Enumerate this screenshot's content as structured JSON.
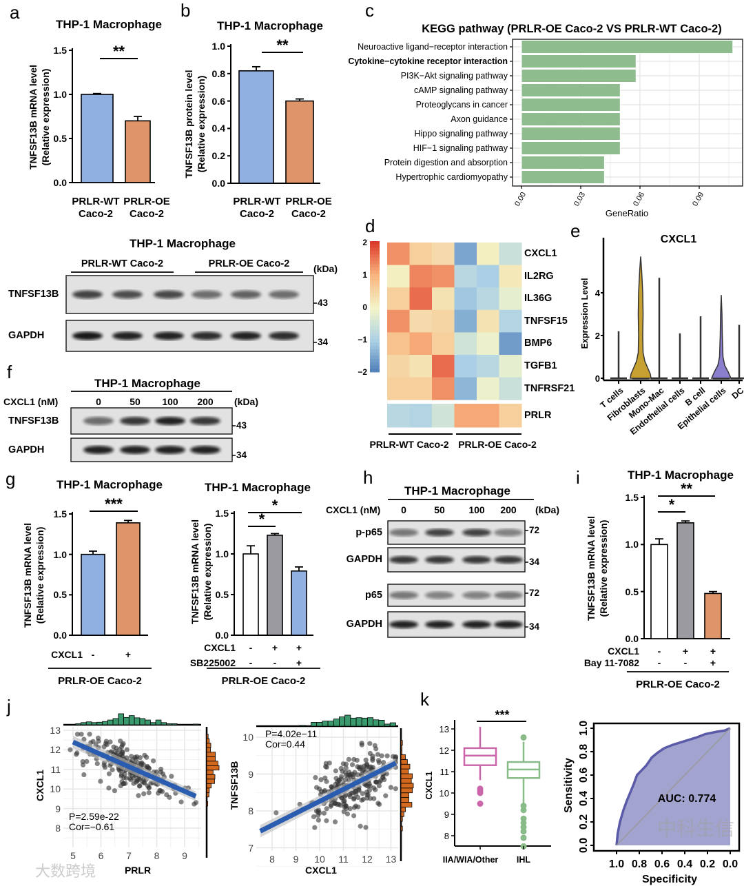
{
  "panel_labels": {
    "a": "a",
    "b": "b",
    "c": "c",
    "d": "d",
    "e": "e",
    "f": "f",
    "g": "g",
    "h": "h",
    "i": "i",
    "j": "j",
    "k": "k"
  },
  "watermarks": [
    "中科生信",
    "大数跨境"
  ],
  "colors": {
    "wt_blue": "#8fb0e0",
    "oe_orange": "#e0946a",
    "gray_bar": "#9a9aa0",
    "kegg_green": "#8fbc8f",
    "fibroblast_gold": "#c6a030",
    "epithelial_purple": "#8a7fcc",
    "scatter_line": "#2a5db0",
    "hist_green": "#3a9a6e",
    "hist_orange": "#d2691e",
    "box_pink": "#cc66aa",
    "box_green": "#88bb88",
    "roc_fill": "#a3a3d0",
    "roc_line": "#5a5aa8"
  },
  "chart_data": [
    {
      "id": "a",
      "type": "bar",
      "title": "THP-1 Macrophage",
      "ylabel": [
        "TNFSF13B mRNA level",
        "(Relative expression)"
      ],
      "ylim": [
        0,
        1.5
      ],
      "yticks": [
        "0.0",
        "0.5",
        "1.0",
        "1.5"
      ],
      "categories": [
        [
          "PRLR-WT",
          "Caco-2"
        ],
        [
          "PRLR-OE",
          "Caco-2"
        ]
      ],
      "values": [
        1.0,
        0.7
      ],
      "errors": [
        0.01,
        0.05
      ],
      "bar_colors": [
        "#8fb0e0",
        "#e0946a"
      ],
      "significance": [
        "**"
      ]
    },
    {
      "id": "b",
      "type": "bar",
      "title": "THP-1 Macrophage",
      "ylabel": [
        "TNFSF13B protein level",
        "(Relative expression)"
      ],
      "ylim": [
        0,
        1.0
      ],
      "yticks": [
        "0.0",
        "0.2",
        "0.4",
        "0.6",
        "0.8",
        "1.0"
      ],
      "categories": [
        [
          "PRLR-WT",
          "Caco-2"
        ],
        [
          "PRLR-OE",
          "Caco-2"
        ]
      ],
      "values": [
        0.82,
        0.6
      ],
      "errors": [
        0.03,
        0.015
      ],
      "bar_colors": [
        "#8fb0e0",
        "#e0946a"
      ],
      "significance": [
        "**"
      ]
    },
    {
      "id": "c",
      "type": "bar",
      "orientation": "horizontal",
      "title": "KEGG pathway (PRLR-OE Caco-2 VS PRLR-WT Caco-2)",
      "xlabel": "GeneRatio",
      "xticks": [
        "0.00",
        "0.03",
        "0.06",
        "0.09"
      ],
      "xlim": [
        0,
        0.11
      ],
      "categories": [
        "Neuroactive ligand−receptor interaction",
        "Cytokine−cytokine receptor interaction",
        "PI3K−Akt signaling pathway",
        "cAMP signaling pathway",
        "Proteoglycans in cancer",
        "Axon guidance",
        "Hippo signaling pathway",
        "HIF−1 signaling pathway",
        "Protein digestion and absorption",
        "Hypertrophic cardiomyopathy"
      ],
      "values": [
        0.107,
        0.058,
        0.058,
        0.05,
        0.05,
        0.05,
        0.05,
        0.05,
        0.042,
        0.042
      ],
      "highlight_index": 1,
      "grid": true
    },
    {
      "id": "d",
      "type": "heatmap",
      "rows": [
        "CXCL1",
        "IL2RG",
        "IL36G",
        "TNFSF15",
        "BMP6",
        "TGFB1",
        "TNFRSF21",
        "PRLR"
      ],
      "groups": [
        "PRLR-WT Caco-2",
        "PRLR-OE Caco-2"
      ],
      "values": [
        [
          1.3,
          0.6,
          0.4,
          -1.5,
          0.1,
          -0.6
        ],
        [
          0.1,
          1.4,
          1.3,
          -0.8,
          -1.0,
          0.2
        ],
        [
          0.6,
          1.6,
          0.3,
          -1.1,
          -0.8,
          -0.2
        ],
        [
          1.3,
          0.4,
          0.5,
          -1.4,
          0.3,
          -0.9
        ],
        [
          0.8,
          1.1,
          0.6,
          -0.5,
          -0.1,
          -1.6
        ],
        [
          0.5,
          0.3,
          1.6,
          -1.0,
          -0.8,
          -0.2
        ],
        [
          0.6,
          0.6,
          1.3,
          -1.3,
          -0.1,
          -0.6
        ],
        [
          -0.8,
          -0.9,
          -0.5,
          1.1,
          1.1,
          0.6
        ]
      ],
      "colorbar_ticks": [
        "2",
        "1",
        "0",
        "−1",
        "−2"
      ],
      "range": [
        -2,
        2
      ]
    },
    {
      "id": "e",
      "type": "violin",
      "title": "CXCL1",
      "ylabel": "Expression Level",
      "yticks": [
        "0",
        "2",
        "4"
      ],
      "categories": [
        "T cells",
        "Fibroblasts",
        "Mono-Mac",
        "Endothelial cells",
        "B cell",
        "Epithelial cells",
        "DC"
      ],
      "max_values": [
        2.2,
        5.7,
        4.7,
        2.1,
        2.9,
        3.9,
        2.5
      ]
    },
    {
      "id": "g_left",
      "type": "bar",
      "title": "THP-1 Macrophage",
      "ylabel": [
        "TNFSF13B mRNA level",
        "(Relative expression)"
      ],
      "ylim": [
        0,
        1.5
      ],
      "yticks": [
        "0.0",
        "0.5",
        "1.0",
        "1.5"
      ],
      "rows": [
        {
          "label": "CXCL1",
          "values": [
            "-",
            "+"
          ]
        }
      ],
      "group": "PRLR-OE Caco-2",
      "values": [
        1.0,
        1.39
      ],
      "errors": [
        0.04,
        0.03
      ],
      "bar_colors": [
        "#8fb0e0",
        "#e0946a"
      ],
      "significance": [
        "***"
      ]
    },
    {
      "id": "g_right",
      "type": "bar",
      "title": "THP-1 Macrophage",
      "ylabel": [
        "TNFSF13B mRNA level",
        "(Relative expression)"
      ],
      "ylim": [
        0,
        1.5
      ],
      "yticks": [
        "0.0",
        "0.5",
        "1.0",
        "1.5"
      ],
      "rows": [
        {
          "label": "CXCL1",
          "values": [
            "-",
            "+",
            "+"
          ]
        },
        {
          "label": "SB225002",
          "values": [
            "-",
            "-",
            "+"
          ]
        }
      ],
      "group": "PRLR-OE Caco-2",
      "values": [
        1.0,
        1.23,
        0.79
      ],
      "errors": [
        0.1,
        0.02,
        0.05
      ],
      "bar_colors": [
        "#ffffff",
        "#9a9aa0",
        "#8fb0e0"
      ],
      "significance": [
        "*",
        "*"
      ]
    },
    {
      "id": "i",
      "type": "bar",
      "title": "THP-1 Macrophage",
      "ylabel": [
        "TNFSF13B mRNA level",
        "(Relative expression)"
      ],
      "ylim": [
        0,
        1.5
      ],
      "yticks": [
        "0.0",
        "0.5",
        "1.0",
        "1.5"
      ],
      "rows": [
        {
          "label": "CXCL1",
          "values": [
            "-",
            "+",
            "+"
          ]
        },
        {
          "label": "Bay 11-7082",
          "values": [
            "-",
            "-",
            "+"
          ]
        }
      ],
      "group": "PRLR-OE Caco-2",
      "values": [
        1.0,
        1.23,
        0.48
      ],
      "errors": [
        0.06,
        0.02,
        0.02
      ],
      "bar_colors": [
        "#ffffff",
        "#9a9aa0",
        "#e0946a"
      ],
      "significance": [
        "*",
        "**"
      ]
    },
    {
      "id": "j_left",
      "type": "scatter",
      "xlabel": "PRLR",
      "ylabel": "CXCL1",
      "xticks": [
        "5",
        "6",
        "7",
        "8",
        "9"
      ],
      "yticks": [
        "13",
        "12",
        "11",
        "10",
        "9",
        "8"
      ],
      "stats": [
        "P=2.59e-22",
        "Cor=−0.61"
      ],
      "fit_line": [
        [
          5,
          12.4
        ],
        [
          9.4,
          9.63
        ]
      ]
    },
    {
      "id": "j_right",
      "type": "scatter",
      "xlabel": "CXCL1",
      "ylabel": "TNFSF13B",
      "xticks": [
        "8",
        "9",
        "10",
        "11",
        "12",
        "13"
      ],
      "yticks": [
        "10",
        "9",
        "8",
        "7"
      ],
      "stats": [
        "P=4.02e−11",
        "Cor=0.44"
      ],
      "fit_line": [
        [
          7.5,
          7.45
        ],
        [
          13.2,
          9.3
        ]
      ]
    },
    {
      "id": "k_box",
      "type": "box",
      "ylabel": "CXCL1",
      "categories": [
        "IIA/WIA/Other",
        "IHL"
      ],
      "yticks": [
        "13",
        "12",
        "11",
        "10",
        "9",
        "8"
      ],
      "significance": "***",
      "boxes": [
        {
          "whisker_low": 10.6,
          "q1": 11.3,
          "median": 11.75,
          "q3": 12.1,
          "whisker_high": 13.1,
          "outliers": [
            10.2,
            10.1,
            10.0,
            9.5
          ]
        },
        {
          "whisker_low": 9.5,
          "q1": 10.7,
          "median": 11.1,
          "q3": 11.45,
          "whisker_high": 12.4,
          "outliers": [
            12.6,
            9.4,
            9.2,
            8.8,
            8.6,
            8.4,
            8.2,
            7.9,
            7.5
          ]
        }
      ]
    },
    {
      "id": "k_roc",
      "type": "line",
      "xlabel": "Specificity",
      "ylabel": "Sensitivity",
      "xticks": [
        "1.0",
        "0.8",
        "0.6",
        "0.4",
        "0.2",
        "0.0"
      ],
      "yticks": [
        "0.0",
        "0.2",
        "0.4",
        "0.6",
        "0.8",
        "1.0"
      ],
      "auc_label": "AUC: 0.774",
      "curve": [
        [
          1,
          0
        ],
        [
          0.99,
          0.1
        ],
        [
          0.97,
          0.2
        ],
        [
          0.94,
          0.3
        ],
        [
          0.91,
          0.38
        ],
        [
          0.88,
          0.45
        ],
        [
          0.85,
          0.52
        ],
        [
          0.82,
          0.6
        ],
        [
          0.78,
          0.64
        ],
        [
          0.74,
          0.68
        ],
        [
          0.69,
          0.75
        ],
        [
          0.64,
          0.79
        ],
        [
          0.58,
          0.83
        ],
        [
          0.5,
          0.86
        ],
        [
          0.4,
          0.89
        ],
        [
          0.3,
          0.92
        ],
        [
          0.22,
          0.95
        ],
        [
          0.12,
          0.97
        ],
        [
          0.05,
          0.98
        ],
        [
          0,
          1
        ]
      ]
    }
  ],
  "blots": {
    "b_lower": {
      "title": "THP-1 Macrophage",
      "groups": [
        "PRLR-WT Caco-2",
        "PRLR-OE Caco-2"
      ],
      "kda_label": "(kDa)",
      "rows": [
        {
          "label": "TNFSF13B",
          "marker": "43",
          "band_intensity": [
            0.75,
            0.7,
            0.72,
            0.55,
            0.6,
            0.55
          ]
        },
        {
          "label": "GAPDH",
          "marker": "34",
          "band_intensity": [
            0.95,
            0.9,
            0.9,
            0.85,
            0.9,
            0.85
          ]
        }
      ]
    },
    "f": {
      "title": "THP-1 Macrophage",
      "treatment_label": "CXCL1 (nM)",
      "lanes": [
        "0",
        "50",
        "100",
        "200"
      ],
      "kda_label": "(kDa)",
      "rows": [
        {
          "label": "TNFSF13B",
          "marker": "43",
          "band_intensity": [
            0.55,
            0.8,
            0.9,
            0.8
          ]
        },
        {
          "label": "GAPDH",
          "marker": "34",
          "band_intensity": [
            0.9,
            0.9,
            0.9,
            0.9
          ]
        }
      ]
    },
    "h": {
      "title": "THP-1 Macrophage",
      "treatment_label": "CXCL1 (nM)",
      "lanes": [
        "0",
        "50",
        "100",
        "200"
      ],
      "kda_label": "(kDa)",
      "rows": [
        {
          "label": "p-p65",
          "marker": "72",
          "band_intensity": [
            0.5,
            0.75,
            0.75,
            0.45
          ]
        },
        {
          "label": "GAPDH",
          "marker": "34",
          "band_intensity": [
            0.8,
            0.8,
            0.8,
            0.8
          ]
        },
        {
          "label": "p65",
          "marker": "72",
          "band_intensity": [
            0.5,
            0.45,
            0.45,
            0.5
          ]
        },
        {
          "label": "GAPDH",
          "marker": "34",
          "band_intensity": [
            0.9,
            0.9,
            0.9,
            0.9
          ]
        }
      ]
    }
  }
}
